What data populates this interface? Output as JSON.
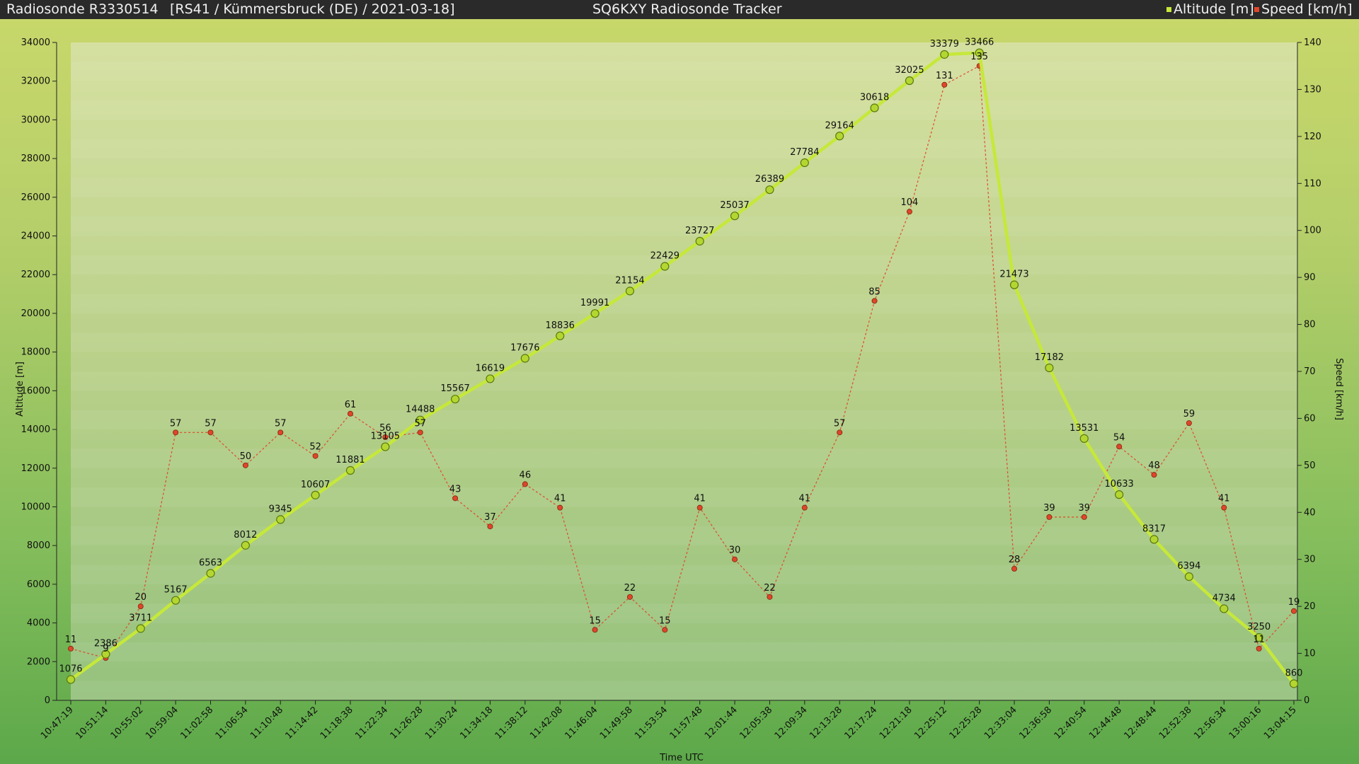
{
  "header": {
    "sonde": "Radiosonde R3330514",
    "info": "[RS41 / Kümmersbruck (DE) / 2021-03-18]",
    "tracker": "SQ6KXY Radiosonde Tracker",
    "legend": [
      {
        "label": "Altitude [m]",
        "color": "#c6e83a"
      },
      {
        "label": "Speed [km/h]",
        "color": "#e0452a"
      }
    ]
  },
  "chart_data": {
    "type": "line",
    "xlabel": "Time UTC",
    "ylabel": "Altitude [m]",
    "y2label": "Speed [km/h]",
    "ylim": [
      0,
      34000
    ],
    "y2lim": [
      0,
      140
    ],
    "yticks": [
      0,
      2000,
      4000,
      6000,
      8000,
      10000,
      12000,
      14000,
      16000,
      18000,
      20000,
      22000,
      24000,
      26000,
      28000,
      30000,
      32000,
      34000
    ],
    "y2ticks": [
      0,
      10,
      20,
      30,
      40,
      50,
      60,
      70,
      80,
      90,
      100,
      110,
      120,
      130,
      140
    ],
    "categories": [
      "10:47:19",
      "10:51:14",
      "10:55:02",
      "10:59:04",
      "11:02:58",
      "11:06:54",
      "11:10:48",
      "11:14:42",
      "11:18:38",
      "11:22:34",
      "11:26:28",
      "11:30:24",
      "11:34:18",
      "11:38:12",
      "11:42:08",
      "11:46:04",
      "11:49:58",
      "11:53:54",
      "11:57:48",
      "12:01:44",
      "12:05:38",
      "12:09:34",
      "12:13:28",
      "12:17:24",
      "12:21:18",
      "12:25:12",
      "12:25:28",
      "12:33:04",
      "12:36:58",
      "12:40:54",
      "12:44:48",
      "12:48:44",
      "12:52:38",
      "12:56:34",
      "13:00:16",
      "13:04:15"
    ],
    "series": [
      {
        "name": "Altitude [m]",
        "axis": "left",
        "color": "#c6e83a",
        "values": [
          1076,
          2386,
          3711,
          5167,
          6563,
          8012,
          9345,
          10607,
          11881,
          13105,
          14488,
          15567,
          16619,
          17676,
          18836,
          19991,
          21154,
          22429,
          23727,
          25037,
          26389,
          27784,
          29164,
          30618,
          32025,
          33379,
          33466,
          21473,
          17182,
          13531,
          10633,
          8317,
          6394,
          4734,
          3250,
          860
        ]
      },
      {
        "name": "Speed [km/h]",
        "axis": "right",
        "color": "#e0452a",
        "values": [
          11,
          9,
          20,
          57,
          57,
          50,
          57,
          52,
          61,
          56,
          57,
          43,
          37,
          46,
          41,
          15,
          22,
          15,
          41,
          30,
          22,
          41,
          57,
          85,
          104,
          131,
          135,
          28,
          39,
          39,
          54,
          48,
          59,
          41,
          11,
          19
        ]
      }
    ]
  }
}
